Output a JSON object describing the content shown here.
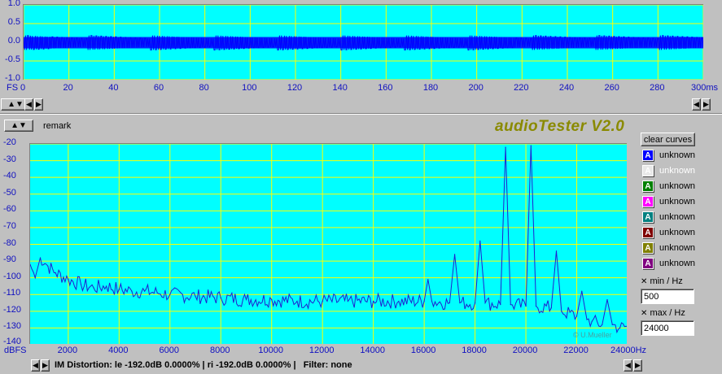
{
  "top_plot": {
    "y_ticks": [
      "1.0",
      "0.5",
      "0.0",
      "-0.5",
      "-1.0"
    ],
    "y_unit": "FS",
    "x_ticks": [
      "0",
      "20",
      "40",
      "60",
      "80",
      "100",
      "120",
      "140",
      "160",
      "180",
      "200",
      "220",
      "240",
      "260",
      "280",
      "300ms"
    ],
    "colors": {
      "background": "#00ffff",
      "grid": "#ffff00",
      "signal": "#0000ff"
    }
  },
  "remark_label": "remark",
  "app_title": "audioTester V2.0",
  "clear_curves_label": "clear curves",
  "legend": [
    {
      "icon": "A",
      "label": "unknown",
      "color": "#0000ff",
      "dim": false
    },
    {
      "icon": "A",
      "label": "unknown",
      "color": "#e8e8e8",
      "dim": true
    },
    {
      "icon": "A",
      "label": "unknown",
      "color": "#008000",
      "dim": false
    },
    {
      "icon": "A",
      "label": "unknown",
      "color": "#ff00ff",
      "dim": false
    },
    {
      "icon": "A",
      "label": "unknown",
      "color": "#008080",
      "dim": false
    },
    {
      "icon": "A",
      "label": "unknown",
      "color": "#800000",
      "dim": false
    },
    {
      "icon": "A",
      "label": "unknown",
      "color": "#808000",
      "dim": false
    },
    {
      "icon": "A",
      "label": "unknown",
      "color": "#800080",
      "dim": false
    }
  ],
  "xmin": {
    "label": "min / Hz",
    "value": "500"
  },
  "xmax": {
    "label": "max / Hz",
    "value": "24000"
  },
  "watermark": "© U.Mueller",
  "status_text": "IM Distortion: le -192.0dB 0.0000% | ri -192.0dB 0.0000% |   Filter: none",
  "spectrum": {
    "y_unit": "dBFS",
    "x_unit": "Hz",
    "y_ticks": [
      "-20",
      "-30",
      "-40",
      "-50",
      "-60",
      "-70",
      "-80",
      "-90",
      "-100",
      "-110",
      "-120",
      "-130",
      "-140"
    ],
    "x_ticks": [
      "2000",
      "4000",
      "6000",
      "8000",
      "10000",
      "12000",
      "14000",
      "16000",
      "18000",
      "20000",
      "22000",
      "24000Hz"
    ],
    "colors": {
      "background": "#00ffff",
      "grid": "#ffff00",
      "trace": "#2020d0"
    }
  },
  "chart_data": {
    "type": "line",
    "xlabel": "Hz",
    "ylabel": "dBFS",
    "xlim": [
      500,
      24000
    ],
    "ylim": [
      -140,
      -20
    ],
    "grid": true,
    "series": [
      {
        "x": [
          500,
          700,
          900,
          1200,
          1500,
          2000,
          2500,
          3000,
          3500,
          4000,
          4500,
          5000,
          5500,
          6000,
          7000,
          8000,
          9000,
          10000,
          11000,
          12000,
          13000,
          14000,
          15000,
          16000,
          16150,
          16300,
          17000,
          17200,
          17400,
          18000,
          18200,
          18400,
          19000,
          19200,
          19400,
          20000,
          20200,
          20400,
          21000,
          21200,
          21400,
          22000,
          22200,
          22400,
          22600,
          23000,
          23200,
          23400,
          23700,
          24000
        ],
        "y": [
          -92,
          -100,
          -88,
          -93,
          -97,
          -101,
          -104,
          -106,
          -105,
          -107,
          -108,
          -108,
          -109,
          -110,
          -111,
          -112,
          -113,
          -113,
          -114,
          -114,
          -114,
          -114,
          -114,
          -114,
          -101,
          -114,
          -115,
          -86,
          -115,
          -115,
          -78,
          -115,
          -116,
          -22,
          -116,
          -117,
          -21,
          -117,
          -118,
          -84,
          -120,
          -123,
          -108,
          -125,
          -126,
          -128,
          -113,
          -128,
          -130,
          -129
        ]
      }
    ]
  }
}
